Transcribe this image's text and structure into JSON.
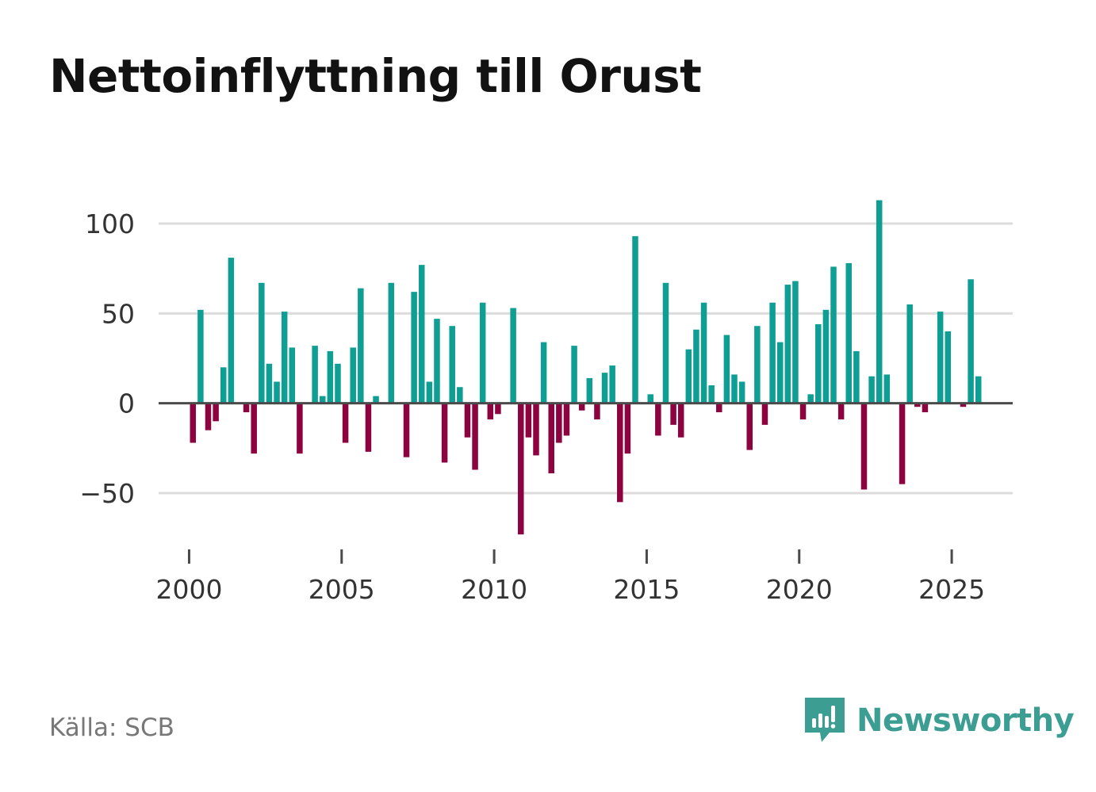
{
  "title": "Nettoinflyttning till Orust",
  "source": "Källa: SCB",
  "logo": {
    "text": "Newsworthy",
    "icon": "newsworthy-chart-bubble-icon"
  },
  "colors": {
    "positive": "#0e9e93",
    "negative": "#8c033f",
    "grid": "#dcdcdc",
    "zero_line": "#4a4a4a",
    "logo": "#3c9d92"
  },
  "chart_data": {
    "type": "bar",
    "title": "Nettoinflyttning till Orust",
    "xlabel": "",
    "ylabel": "",
    "ylim": [
      -80,
      115
    ],
    "xlim": [
      1999.0,
      2027.0
    ],
    "yticks": [
      100,
      50,
      0,
      -50
    ],
    "ytick_labels": [
      "100",
      "50",
      "0",
      "−50"
    ],
    "xticks": [
      2000,
      2005,
      2010,
      2015,
      2020,
      2025
    ],
    "xtick_labels": [
      "2000",
      "2005",
      "2010",
      "2015",
      "2020",
      "2025"
    ],
    "grid": true,
    "legend": "none",
    "granularity": "quarterly",
    "x": [
      2000.0,
      2000.25,
      2000.5,
      2000.75,
      2001.0,
      2001.25,
      2001.5,
      2001.75,
      2002.0,
      2002.25,
      2002.5,
      2002.75,
      2003.0,
      2003.25,
      2003.5,
      2003.75,
      2004.0,
      2004.25,
      2004.5,
      2004.75,
      2005.0,
      2005.25,
      2005.5,
      2005.75,
      2006.0,
      2006.25,
      2006.5,
      2006.75,
      2007.0,
      2007.25,
      2007.5,
      2007.75,
      2008.0,
      2008.25,
      2008.5,
      2008.75,
      2009.0,
      2009.25,
      2009.5,
      2009.75,
      2010.0,
      2010.25,
      2010.5,
      2010.75,
      2011.0,
      2011.25,
      2011.5,
      2011.75,
      2012.0,
      2012.25,
      2012.5,
      2012.75,
      2013.0,
      2013.25,
      2013.5,
      2013.75,
      2014.0,
      2014.25,
      2014.5,
      2014.75,
      2015.0,
      2015.25,
      2015.5,
      2015.75,
      2016.0,
      2016.25,
      2016.5,
      2016.75,
      2017.0,
      2017.25,
      2017.5,
      2017.75,
      2018.0,
      2018.25,
      2018.5,
      2018.75,
      2019.0,
      2019.25,
      2019.5,
      2019.75,
      2020.0,
      2020.25,
      2020.5,
      2020.75,
      2021.0,
      2021.25,
      2021.5,
      2021.75,
      2022.0,
      2022.25,
      2022.5,
      2022.75,
      2023.0,
      2023.25,
      2023.5,
      2023.75,
      2024.0,
      2024.25,
      2024.5,
      2024.75,
      2025.0,
      2025.25,
      2025.5,
      2025.75
    ],
    "values": [
      -22,
      52,
      -15,
      -10,
      20,
      81,
      0,
      -5,
      -28,
      67,
      22,
      12,
      51,
      31,
      -28,
      0,
      32,
      4,
      29,
      22,
      -22,
      31,
      64,
      -27,
      4,
      0,
      67,
      0,
      -30,
      62,
      77,
      12,
      47,
      -33,
      43,
      9,
      -19,
      -37,
      56,
      -9,
      -6,
      0,
      53,
      -73,
      -19,
      -29,
      34,
      -39,
      -22,
      -18,
      32,
      -4,
      14,
      -9,
      17,
      21,
      -55,
      -28,
      93,
      0,
      5,
      -18,
      67,
      -12,
      -19,
      30,
      41,
      56,
      10,
      -5,
      38,
      16,
      12,
      -26,
      43,
      -12,
      56,
      34,
      66,
      68,
      -9,
      5,
      44,
      52,
      76,
      -9,
      78,
      29,
      -48,
      15,
      113,
      16,
      0,
      -45,
      55,
      -2,
      -5,
      0,
      51,
      40,
      0,
      -2,
      69,
      15
    ]
  }
}
